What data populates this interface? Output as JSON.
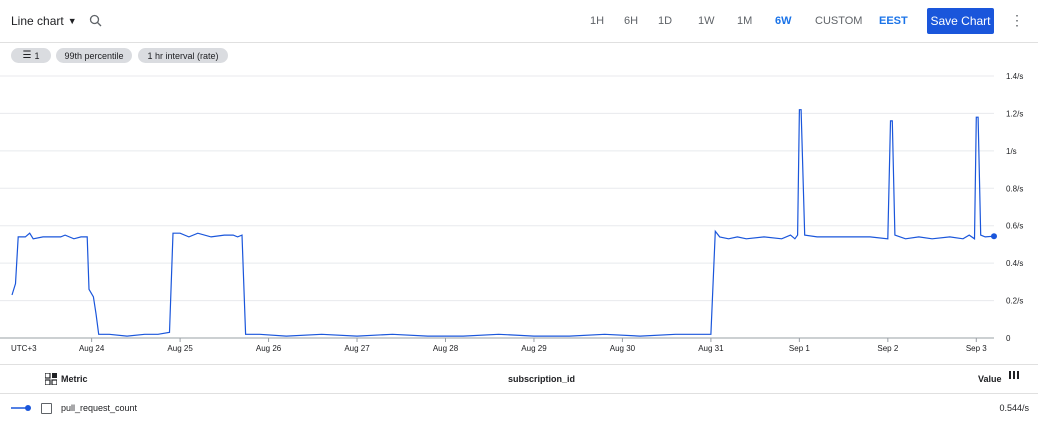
{
  "toolbar": {
    "chart_type_label": "Line chart",
    "time_ranges": [
      "1H",
      "6H",
      "1D",
      "1W",
      "1M",
      "6W",
      "CUSTOM"
    ],
    "active_range": "6W",
    "timezone": "EEST",
    "save_label": "Save Chart"
  },
  "filters": {
    "filter_count": "1",
    "aggregation": "99th percentile",
    "interval": "1 hr interval (rate)"
  },
  "colors": {
    "accent": "#1a73e8",
    "series": "#1a56db",
    "button": "#1a56db"
  },
  "chart_data": {
    "type": "line",
    "title": "",
    "x_axis_label": "UTC+3",
    "x_tick_labels": [
      "Aug 24",
      "Aug 25",
      "Aug 26",
      "Aug 27",
      "Aug 28",
      "Aug 29",
      "Aug 30",
      "Aug 31",
      "Sep 1",
      "Sep 2",
      "Sep 3"
    ],
    "y_tick_labels": [
      "0",
      "0.2/s",
      "0.4/s",
      "0.6/s",
      "0.8/s",
      "1/s",
      "1.2/s",
      "1.4/s"
    ],
    "ylim": [
      0,
      1.4
    ],
    "xlim": [
      -0.9,
      10.2
    ],
    "series": [
      {
        "name": "pull_request_count",
        "points": [
          [
            -0.9,
            0.23
          ],
          [
            -0.86,
            0.29
          ],
          [
            -0.83,
            0.54
          ],
          [
            -0.75,
            0.54
          ],
          [
            -0.7,
            0.56
          ],
          [
            -0.66,
            0.53
          ],
          [
            -0.55,
            0.54
          ],
          [
            -0.35,
            0.54
          ],
          [
            -0.3,
            0.55
          ],
          [
            -0.2,
            0.53
          ],
          [
            -0.12,
            0.54
          ],
          [
            -0.05,
            0.54
          ],
          [
            -0.03,
            0.26
          ],
          [
            0.02,
            0.22
          ],
          [
            0.05,
            0.13
          ],
          [
            0.08,
            0.02
          ],
          [
            0.2,
            0.02
          ],
          [
            0.4,
            0.01
          ],
          [
            0.6,
            0.02
          ],
          [
            0.75,
            0.02
          ],
          [
            0.88,
            0.03
          ],
          [
            0.92,
            0.56
          ],
          [
            1.0,
            0.56
          ],
          [
            1.1,
            0.54
          ],
          [
            1.2,
            0.56
          ],
          [
            1.35,
            0.54
          ],
          [
            1.5,
            0.55
          ],
          [
            1.6,
            0.55
          ],
          [
            1.65,
            0.54
          ],
          [
            1.7,
            0.55
          ],
          [
            1.74,
            0.02
          ],
          [
            1.9,
            0.02
          ],
          [
            2.2,
            0.01
          ],
          [
            2.6,
            0.02
          ],
          [
            3.0,
            0.01
          ],
          [
            3.4,
            0.02
          ],
          [
            3.8,
            0.01
          ],
          [
            4.2,
            0.01
          ],
          [
            4.6,
            0.02
          ],
          [
            5.0,
            0.01
          ],
          [
            5.4,
            0.01
          ],
          [
            5.8,
            0.02
          ],
          [
            6.2,
            0.01
          ],
          [
            6.6,
            0.02
          ],
          [
            7.0,
            0.02
          ],
          [
            7.05,
            0.57
          ],
          [
            7.1,
            0.54
          ],
          [
            7.2,
            0.53
          ],
          [
            7.3,
            0.54
          ],
          [
            7.4,
            0.53
          ],
          [
            7.6,
            0.54
          ],
          [
            7.8,
            0.53
          ],
          [
            7.9,
            0.55
          ],
          [
            7.95,
            0.53
          ],
          [
            7.98,
            0.55
          ],
          [
            8.0,
            1.22
          ],
          [
            8.02,
            1.22
          ],
          [
            8.06,
            0.55
          ],
          [
            8.2,
            0.54
          ],
          [
            8.4,
            0.54
          ],
          [
            8.6,
            0.54
          ],
          [
            8.8,
            0.54
          ],
          [
            9.0,
            0.53
          ],
          [
            9.03,
            1.16
          ],
          [
            9.05,
            1.16
          ],
          [
            9.08,
            0.55
          ],
          [
            9.2,
            0.53
          ],
          [
            9.35,
            0.54
          ],
          [
            9.5,
            0.53
          ],
          [
            9.7,
            0.54
          ],
          [
            9.85,
            0.53
          ],
          [
            9.92,
            0.55
          ],
          [
            9.98,
            0.53
          ],
          [
            10.0,
            1.18
          ],
          [
            10.02,
            1.18
          ],
          [
            10.05,
            0.55
          ],
          [
            10.1,
            0.54
          ],
          [
            10.2,
            0.544
          ]
        ]
      }
    ]
  },
  "table": {
    "col_metric": "Metric",
    "col_subscription": "subscription_id",
    "col_value": "Value",
    "rows": [
      {
        "metric": "pull_request_count",
        "value": "0.544/s"
      }
    ]
  }
}
